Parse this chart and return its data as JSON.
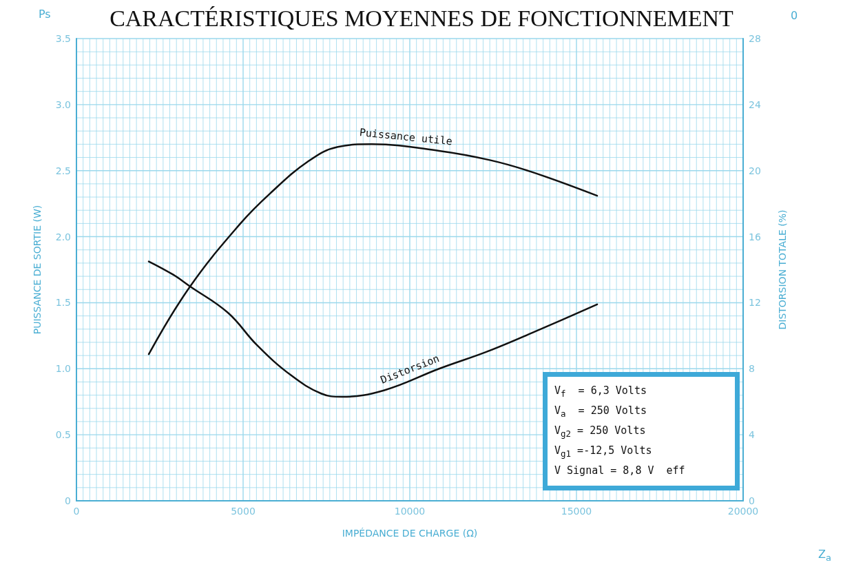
{
  "chart_data": {
    "type": "line",
    "title": "CARACTÉRISTIQUES MOYENNES DE FONCTIONNEMENT",
    "xlabel": "IMPÉDANCE DE CHARGE (Ω)",
    "ylabel": "PUISSANCE DE SORTIE (W)",
    "y2label": "DISTORSION TOTALE (%)",
    "xlim": [
      0,
      20000
    ],
    "xticks": [
      0,
      {
        "value": 200,
        "label": null
      },
      {
        "value": 400,
        "label": null
      },
      {
        "value": 600,
        "label": null
      },
      {
        "value": 800,
        "label": null
      },
      {
        "value": 1000,
        "label": null
      },
      {
        "value": 1200,
        "label": null
      },
      {
        "value": 1400,
        "label": null
      },
      {
        "value": 1600,
        "label": null
      },
      {
        "value": 1800,
        "label": null
      },
      {
        "value": 2000,
        "label": null
      },
      {
        "value": 2200,
        "label": null
      },
      {
        "value": 2400,
        "label": null
      },
      {
        "value": 2600,
        "label": null
      },
      {
        "value": 2800,
        "label": null
      },
      {
        "value": 3000,
        "label": null
      },
      {
        "value": 3200,
        "label": null
      },
      {
        "value": 3400,
        "label": null
      },
      {
        "value": 3600,
        "label": null
      },
      {
        "value": 3800,
        "label": null
      },
      {
        "value": 4000,
        "label": null
      },
      {
        "value": 4200,
        "label": null
      },
      {
        "value": 4400,
        "label": null
      },
      {
        "value": 4600,
        "label": null
      },
      {
        "value": 4800,
        "label": null
      },
      5000,
      {
        "value": 5200,
        "label": null
      },
      {
        "value": 5400,
        "label": null
      },
      {
        "value": 5600,
        "label": null
      },
      {
        "value": 5800,
        "label": null
      },
      {
        "value": 6000,
        "label": null
      },
      {
        "value": 6200,
        "label": null
      },
      {
        "value": 6400,
        "label": null
      },
      {
        "value": 6600,
        "label": null
      },
      {
        "value": 6800,
        "label": null
      },
      {
        "value": 7000,
        "label": null
      },
      {
        "value": 7200,
        "label": null
      },
      {
        "value": 7400,
        "label": null
      },
      {
        "value": 7600,
        "label": null
      },
      {
        "value": 7800,
        "label": null
      },
      {
        "value": 8000,
        "label": null
      },
      {
        "value": 8200,
        "label": null
      },
      {
        "value": 8400,
        "label": null
      },
      {
        "value": 8600,
        "label": null
      },
      {
        "value": 8800,
        "label": null
      },
      {
        "value": 9000,
        "label": null
      },
      {
        "value": 9200,
        "label": null
      },
      {
        "value": 9400,
        "label": null
      },
      {
        "value": 9600,
        "label": null
      },
      {
        "value": 9800,
        "label": null
      },
      10000,
      {
        "value": 10200,
        "label": null
      },
      {
        "value": 10400,
        "label": null
      },
      {
        "value": 10600,
        "label": null
      },
      {
        "value": 10800,
        "label": null
      },
      {
        "value": 11000,
        "label": null
      },
      {
        "value": 11200,
        "label": null
      },
      {
        "value": 11400,
        "label": null
      },
      {
        "value": 11600,
        "label": null
      },
      {
        "value": 11800,
        "label": null
      },
      {
        "value": 12000,
        "label": null
      },
      {
        "value": 12200,
        "label": null
      },
      {
        "value": 12400,
        "label": null
      },
      {
        "value": 12600,
        "label": null
      },
      {
        "value": 12800,
        "label": null
      },
      {
        "value": 13000,
        "label": null
      },
      {
        "value": 13200,
        "label": null
      },
      {
        "value": 13400,
        "label": null
      },
      {
        "value": 13600,
        "label": null
      },
      {
        "value": 13800,
        "label": null
      },
      {
        "value": 14000,
        "label": null
      },
      {
        "value": 14200,
        "label": null
      },
      {
        "value": 14400,
        "label": null
      },
      {
        "value": 14600,
        "label": null
      },
      {
        "value": 14800,
        "label": null
      },
      15000,
      {
        "value": 15200,
        "label": null
      },
      {
        "value": 15400,
        "label": null
      },
      {
        "value": 15600,
        "label": null
      },
      {
        "value": 15800,
        "label": null
      },
      {
        "value": 16000,
        "label": null
      },
      {
        "value": 16200,
        "label": null
      },
      {
        "value": 16400,
        "label": null
      },
      {
        "value": 16600,
        "label": null
      },
      {
        "value": 16800,
        "label": null
      },
      {
        "value": 17000,
        "label": null
      },
      {
        "value": 17200,
        "label": null
      },
      {
        "value": 17400,
        "label": null
      },
      {
        "value": 17600,
        "label": null
      },
      {
        "value": 17800,
        "label": null
      },
      {
        "value": 18000,
        "label": null
      },
      {
        "value": 18200,
        "label": null
      },
      {
        "value": 18400,
        "label": null
      },
      {
        "value": 18600,
        "label": null
      },
      {
        "value": 18800,
        "label": null
      },
      {
        "value": 19000,
        "label": null
      },
      {
        "value": 19200,
        "label": null
      },
      {
        "value": 19400,
        "label": null
      },
      {
        "value": 19600,
        "label": null
      },
      {
        "value": 19800,
        "label": null
      },
      20000
    ],
    "ylim": [
      0,
      3.5
    ],
    "yticks": [
      0,
      {
        "value": 0.1,
        "label": null
      },
      {
        "value": 0.2,
        "label": null
      },
      {
        "value": 0.3,
        "label": null
      },
      {
        "value": 0.4,
        "label": null
      },
      {
        "value": 0.5,
        "label": "0.5"
      },
      {
        "value": 0.6,
        "label": null
      },
      {
        "value": 0.7,
        "label": null
      },
      {
        "value": 0.8,
        "label": null
      },
      {
        "value": 0.9,
        "label": null
      },
      {
        "value": 1,
        "label": "1.0"
      },
      {
        "value": 1.1,
        "label": null
      },
      {
        "value": 1.2,
        "label": null
      },
      {
        "value": 1.3,
        "label": null
      },
      {
        "value": 1.4,
        "label": null
      },
      {
        "value": 1.5,
        "label": "1.5"
      },
      {
        "value": 1.6,
        "label": null
      },
      {
        "value": 1.7,
        "label": null
      },
      {
        "value": 1.8,
        "label": null
      },
      {
        "value": 1.9,
        "label": null
      },
      {
        "value": 2,
        "label": "2.0"
      },
      {
        "value": 2.1,
        "label": null
      },
      {
        "value": 2.2,
        "label": null
      },
      {
        "value": 2.3,
        "label": null
      },
      {
        "value": 2.4,
        "label": null
      },
      {
        "value": 2.5,
        "label": "2.5"
      },
      {
        "value": 2.6,
        "label": null
      },
      {
        "value": 2.7,
        "label": null
      },
      {
        "value": 2.8,
        "label": null
      },
      {
        "value": 2.9,
        "label": null
      },
      {
        "value": 3,
        "label": "3.0"
      },
      {
        "value": 3.1,
        "label": null
      },
      {
        "value": 3.2,
        "label": null
      },
      {
        "value": 3.3,
        "label": null
      },
      {
        "value": 3.4,
        "label": null
      },
      {
        "value": 3.5,
        "label": "3.5"
      }
    ],
    "y2lim": [
      0,
      28
    ],
    "y2ticks": [
      0,
      4,
      8,
      12,
      16,
      20,
      24,
      28
    ],
    "grid": true,
    "series": [
      {
        "name": "Puissance utile",
        "color": "#111111",
        "x": [
          2170,
          3400,
          4920,
          5820,
          6950,
          7840,
          8860,
          10880,
          12400,
          13660,
          15620
        ],
        "values": [
          1.11,
          1.62,
          2.1,
          2.33,
          2.57,
          2.68,
          2.7,
          2.65,
          2.58,
          2.49,
          2.31
        ]
      },
      {
        "name": "Distorsion",
        "color": "#111111",
        "axis": "y2",
        "x": [
          2170,
          2900,
          3400,
          4540,
          5430,
          6440,
          7340,
          7960,
          9240,
          10880,
          12400,
          14040,
          15620
        ],
        "values": [
          14.5,
          13.7,
          13.0,
          11.4,
          9.4,
          7.6,
          6.5,
          6.3,
          6.7,
          8.0,
          9.1,
          10.5,
          11.9
        ]
      }
    ],
    "annotations": [
      "V$_{f}$  = 6,3 Volts",
      "V$_{a}$  = 250 Volts",
      "V$_{g2}$ = 250 Volts",
      "V$_{g1}$ =-12,5 Volts",
      "V Signal = 8,8 V  eff",
      "Ps",
      "Z$_{a}$",
      "0"
    ]
  }
}
